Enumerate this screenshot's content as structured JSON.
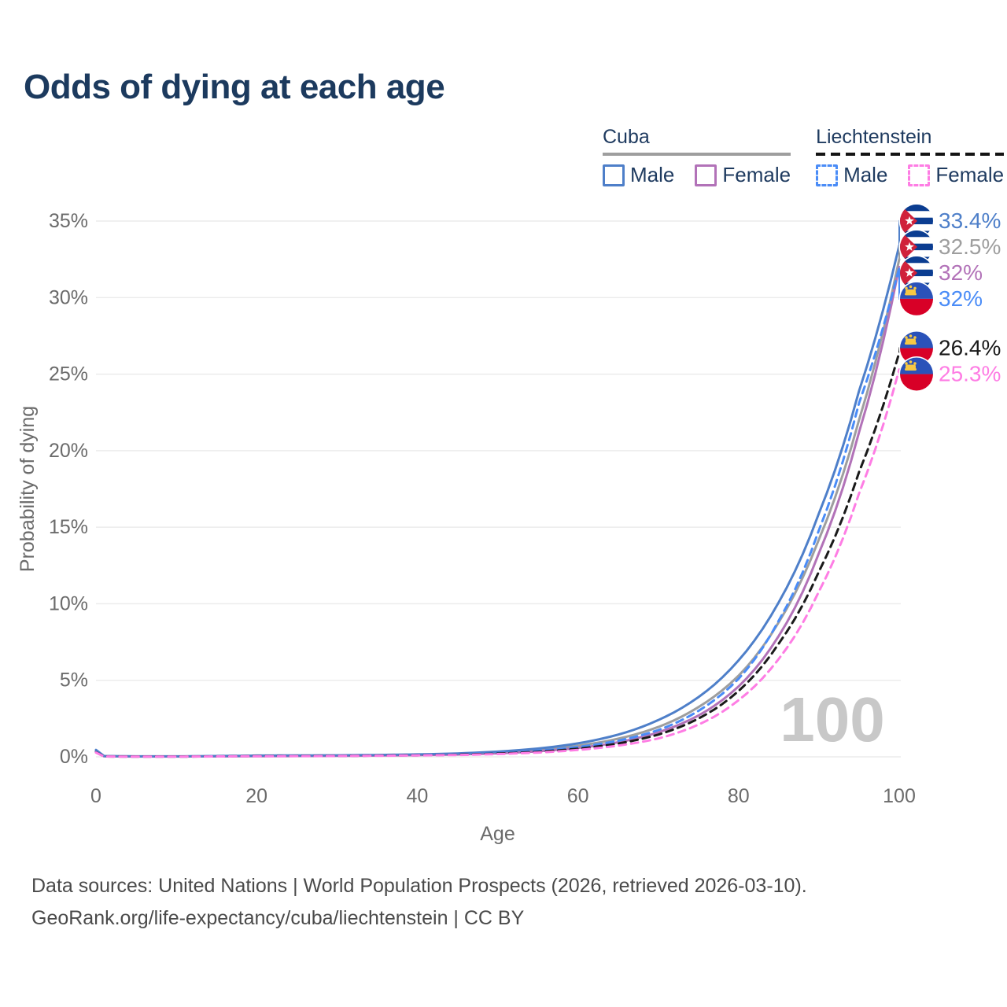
{
  "title": "Odds of dying at each age",
  "legend": {
    "position": "top-right",
    "groups": [
      {
        "name": "cuba",
        "label": "Cuba",
        "dash": false,
        "underline_color": "#9e9e9e",
        "items": [
          {
            "label": "Male",
            "color": "#4e7fc9"
          },
          {
            "label": "Female",
            "color": "#b272b8"
          }
        ]
      },
      {
        "name": "liechtenstein",
        "label": "Liechtenstein",
        "dash": true,
        "underline_color": "#141414",
        "items": [
          {
            "label": "Male",
            "color": "#4a8cf7"
          },
          {
            "label": "Female",
            "color": "#fe7de4"
          }
        ]
      }
    ]
  },
  "chart_data": {
    "type": "line",
    "title": "Odds of dying at each age",
    "xlabel": "Age",
    "ylabel": "Probability of dying",
    "xlim": [
      0,
      100
    ],
    "ylim": [
      0,
      35
    ],
    "x_ticks": [
      0,
      20,
      40,
      60,
      80,
      100
    ],
    "y_ticks": [
      "0%",
      "5%",
      "10%",
      "15%",
      "20%",
      "25%",
      "30%",
      "35%"
    ],
    "y_tick_values": [
      0,
      5,
      10,
      15,
      20,
      25,
      30,
      35
    ],
    "grid": true,
    "watermark": "100",
    "colors": {
      "gridline": "#ececec",
      "tick_text": "#6b6b6b",
      "watermark": "#c8c8c8"
    },
    "series": [
      {
        "id": "cuba-all",
        "name": "Cuba",
        "flag": "cuba",
        "color": "#9e9e9e",
        "dash": false,
        "end_label": "32.5%",
        "end_value": 32.5,
        "points": [
          [
            0,
            0.4
          ],
          [
            1,
            0.04
          ],
          [
            5,
            0.025
          ],
          [
            10,
            0.025
          ],
          [
            15,
            0.04
          ],
          [
            20,
            0.06
          ],
          [
            25,
            0.07
          ],
          [
            30,
            0.08
          ],
          [
            35,
            0.1
          ],
          [
            40,
            0.13
          ],
          [
            45,
            0.18
          ],
          [
            50,
            0.28
          ],
          [
            55,
            0.44
          ],
          [
            60,
            0.72
          ],
          [
            65,
            1.18
          ],
          [
            70,
            1.95
          ],
          [
            75,
            3.25
          ],
          [
            80,
            5.3
          ],
          [
            85,
            8.8
          ],
          [
            90,
            14.2
          ],
          [
            95,
            22.0
          ],
          [
            100,
            32.5
          ]
        ]
      },
      {
        "id": "cuba-female",
        "name": "Cuba Female",
        "flag": "cuba",
        "color": "#b272b8",
        "dash": false,
        "end_label": "32%",
        "end_value": 32.0,
        "points": [
          [
            0,
            0.35
          ],
          [
            1,
            0.035
          ],
          [
            5,
            0.02
          ],
          [
            10,
            0.02
          ],
          [
            15,
            0.03
          ],
          [
            20,
            0.04
          ],
          [
            25,
            0.05
          ],
          [
            30,
            0.06
          ],
          [
            35,
            0.08
          ],
          [
            40,
            0.11
          ],
          [
            45,
            0.15
          ],
          [
            50,
            0.23
          ],
          [
            55,
            0.36
          ],
          [
            60,
            0.58
          ],
          [
            65,
            0.95
          ],
          [
            70,
            1.6
          ],
          [
            75,
            2.7
          ],
          [
            80,
            4.6
          ],
          [
            85,
            7.9
          ],
          [
            90,
            13.3
          ],
          [
            95,
            21.2
          ],
          [
            100,
            32.0
          ]
        ]
      },
      {
        "id": "cuba-male",
        "name": "Cuba Male",
        "flag": "cuba",
        "color": "#4e7fc9",
        "dash": false,
        "end_label": "33.4%",
        "end_value": 33.4,
        "points": [
          [
            0,
            0.45
          ],
          [
            1,
            0.05
          ],
          [
            5,
            0.03
          ],
          [
            10,
            0.03
          ],
          [
            15,
            0.05
          ],
          [
            20,
            0.08
          ],
          [
            25,
            0.09
          ],
          [
            30,
            0.1
          ],
          [
            35,
            0.12
          ],
          [
            40,
            0.16
          ],
          [
            45,
            0.22
          ],
          [
            50,
            0.34
          ],
          [
            55,
            0.54
          ],
          [
            60,
            0.88
          ],
          [
            65,
            1.45
          ],
          [
            70,
            2.4
          ],
          [
            75,
            3.9
          ],
          [
            80,
            6.3
          ],
          [
            85,
            10.1
          ],
          [
            90,
            15.9
          ],
          [
            95,
            23.9
          ],
          [
            100,
            33.4
          ]
        ]
      },
      {
        "id": "liechtenstein-male",
        "name": "Liechtenstein Male",
        "flag": "liechtenstein",
        "color": "#4a8cf7",
        "dash": true,
        "end_label": "32%",
        "end_value": 31.95,
        "points": [
          [
            0,
            0.32
          ],
          [
            1,
            0.03
          ],
          [
            5,
            0.02
          ],
          [
            10,
            0.02
          ],
          [
            15,
            0.04
          ],
          [
            20,
            0.06
          ],
          [
            25,
            0.07
          ],
          [
            30,
            0.08
          ],
          [
            35,
            0.09
          ],
          [
            40,
            0.12
          ],
          [
            45,
            0.16
          ],
          [
            50,
            0.24
          ],
          [
            55,
            0.4
          ],
          [
            60,
            0.64
          ],
          [
            65,
            1.05
          ],
          [
            70,
            1.75
          ],
          [
            75,
            3.0
          ],
          [
            80,
            5.1
          ],
          [
            85,
            8.9
          ],
          [
            90,
            14.8
          ],
          [
            95,
            23.1
          ],
          [
            100,
            31.95
          ]
        ]
      },
      {
        "id": "liechtenstein-all",
        "name": "Liechtenstein",
        "flag": "liechtenstein",
        "color": "#1a1a1a",
        "dash": true,
        "end_label": "26.4%",
        "end_value": 26.4,
        "points": [
          [
            0,
            0.3
          ],
          [
            1,
            0.025
          ],
          [
            5,
            0.018
          ],
          [
            10,
            0.018
          ],
          [
            15,
            0.03
          ],
          [
            20,
            0.05
          ],
          [
            25,
            0.055
          ],
          [
            30,
            0.065
          ],
          [
            35,
            0.08
          ],
          [
            40,
            0.1
          ],
          [
            45,
            0.14
          ],
          [
            50,
            0.21
          ],
          [
            55,
            0.33
          ],
          [
            60,
            0.53
          ],
          [
            65,
            0.87
          ],
          [
            70,
            1.45
          ],
          [
            75,
            2.5
          ],
          [
            80,
            4.3
          ],
          [
            85,
            7.4
          ],
          [
            90,
            12.1
          ],
          [
            95,
            18.6
          ],
          [
            100,
            26.4
          ]
        ]
      },
      {
        "id": "liechtenstein-female",
        "name": "Liechtenstein Female",
        "flag": "liechtenstein",
        "color": "#fe7de4",
        "dash": true,
        "end_label": "25.3%",
        "end_value": 25.3,
        "points": [
          [
            0,
            0.28
          ],
          [
            1,
            0.02
          ],
          [
            5,
            0.015
          ],
          [
            10,
            0.015
          ],
          [
            15,
            0.025
          ],
          [
            20,
            0.04
          ],
          [
            25,
            0.045
          ],
          [
            30,
            0.055
          ],
          [
            35,
            0.07
          ],
          [
            40,
            0.09
          ],
          [
            45,
            0.12
          ],
          [
            50,
            0.18
          ],
          [
            55,
            0.28
          ],
          [
            60,
            0.45
          ],
          [
            65,
            0.73
          ],
          [
            70,
            1.2
          ],
          [
            75,
            2.1
          ],
          [
            80,
            3.7
          ],
          [
            85,
            6.4
          ],
          [
            90,
            10.8
          ],
          [
            95,
            17.2
          ],
          [
            100,
            25.3
          ]
        ]
      }
    ]
  },
  "footer": {
    "line1": "Data sources: United Nations | World Population Prospects (2026, retrieved 2026-03-10).",
    "line2": "GeoRank.org/life-expectancy/cuba/liechtenstein | CC BY"
  }
}
